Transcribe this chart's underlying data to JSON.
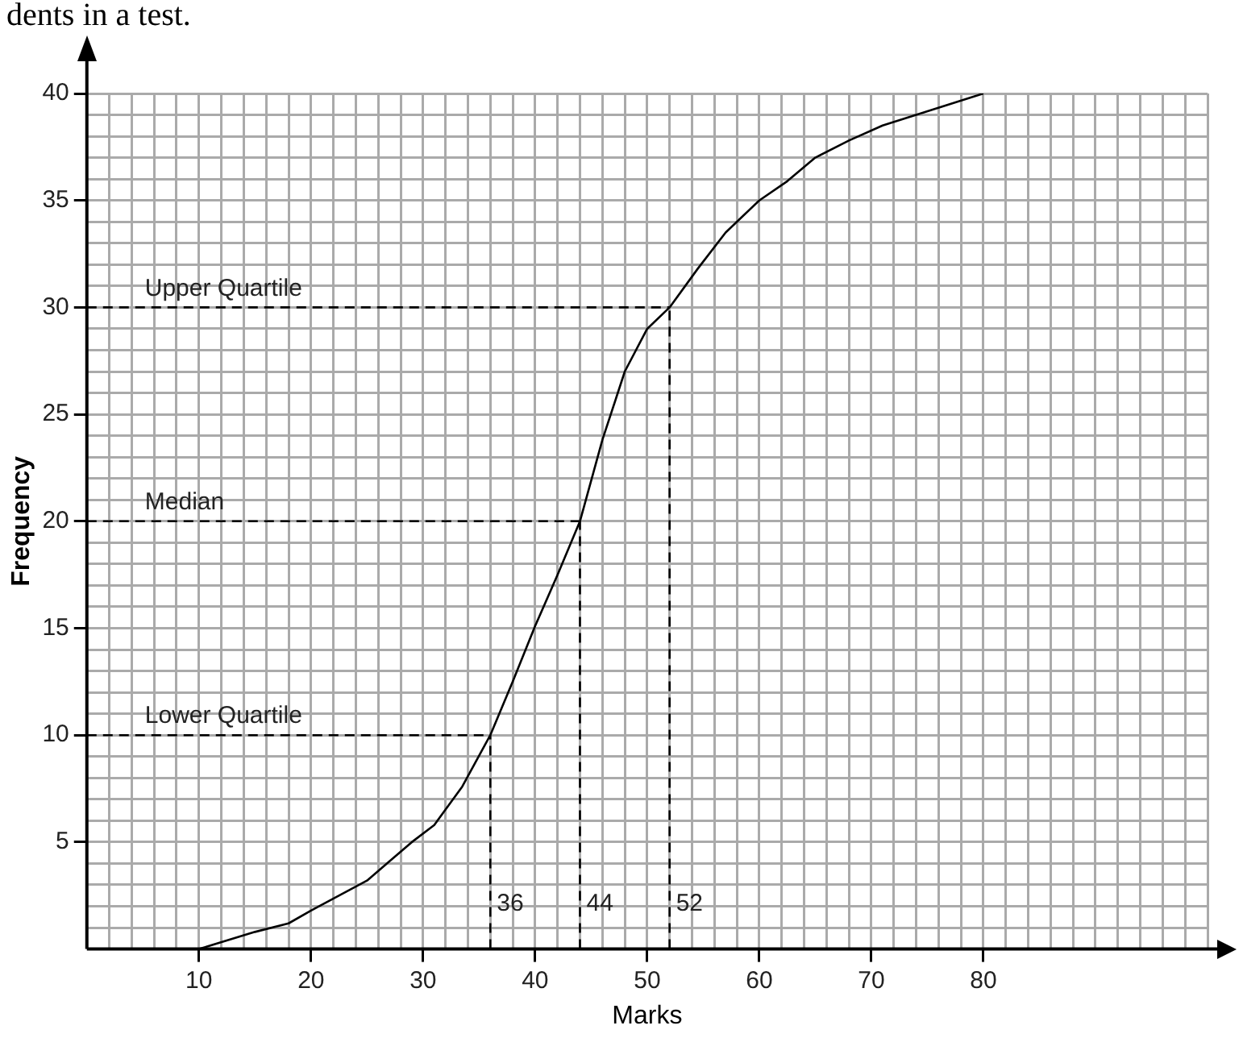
{
  "chart_data": {
    "type": "line",
    "xlabel": "Marks",
    "ylabel": "Frequency",
    "annotations": [
      "dents in a test."
    ],
    "series": [
      {
        "color": "#000000",
        "x": [
          10,
          15,
          18,
          20,
          25,
          27,
          29,
          31,
          33.5,
          36,
          38,
          40,
          42,
          44,
          46,
          48,
          50,
          52,
          54.5,
          57,
          60,
          62.5,
          65,
          68,
          71,
          74,
          77,
          80
        ],
        "values": [
          0,
          0.8,
          1.2,
          1.8,
          3.2,
          4.1,
          5,
          5.8,
          7.6,
          10,
          12.5,
          15.1,
          17.5,
          20,
          23.8,
          27,
          29,
          30,
          31.8,
          33.5,
          35,
          35.9,
          37,
          37.8,
          38.5,
          39,
          39.5,
          40
        ]
      }
    ],
    "xlim": [
      0,
      100
    ],
    "ylim": [
      0,
      40
    ],
    "xticks": [
      {
        "value": 2,
        "label": null
      },
      {
        "value": 4,
        "label": null
      },
      {
        "value": 6,
        "label": null
      },
      {
        "value": 8,
        "label": null
      },
      10,
      {
        "value": 12,
        "label": null
      },
      {
        "value": 14,
        "label": null
      },
      {
        "value": 16,
        "label": null
      },
      {
        "value": 18,
        "label": null
      },
      20,
      {
        "value": 22,
        "label": null
      },
      {
        "value": 24,
        "label": null
      },
      {
        "value": 26,
        "label": null
      },
      {
        "value": 28,
        "label": null
      },
      30,
      {
        "value": 32,
        "label": null
      },
      {
        "value": 34,
        "label": null
      },
      {
        "value": 36,
        "label": null
      },
      {
        "value": 38,
        "label": null
      },
      40,
      {
        "value": 42,
        "label": null
      },
      {
        "value": 44,
        "label": null
      },
      {
        "value": 46,
        "label": null
      },
      {
        "value": 48,
        "label": null
      },
      50,
      {
        "value": 52,
        "label": null
      },
      {
        "value": 54,
        "label": null
      },
      {
        "value": 56,
        "label": null
      },
      {
        "value": 58,
        "label": null
      },
      60,
      {
        "value": 62,
        "label": null
      },
      {
        "value": 64,
        "label": null
      },
      {
        "value": 66,
        "label": null
      },
      {
        "value": 68,
        "label": null
      },
      70,
      {
        "value": 72,
        "label": null
      },
      {
        "value": 74,
        "label": null
      },
      {
        "value": 76,
        "label": null
      },
      {
        "value": 78,
        "label": null
      },
      80,
      {
        "value": 82,
        "label": null
      },
      {
        "value": 84,
        "label": null
      },
      {
        "value": 86,
        "label": null
      },
      {
        "value": 88,
        "label": null
      },
      {
        "value": 90,
        "label": null
      },
      {
        "value": 92,
        "label": null
      },
      {
        "value": 94,
        "label": null
      },
      {
        "value": 96,
        "label": null
      },
      {
        "value": 98,
        "label": null
      },
      {
        "value": 100,
        "label": null
      }
    ],
    "yticks": [
      {
        "value": 1,
        "label": null
      },
      {
        "value": 2,
        "label": null
      },
      {
        "value": 3,
        "label": null
      },
      {
        "value": 4,
        "label": null
      },
      5,
      {
        "value": 6,
        "label": null
      },
      {
        "value": 7,
        "label": null
      },
      {
        "value": 8,
        "label": null
      },
      {
        "value": 9,
        "label": null
      },
      10,
      {
        "value": 11,
        "label": null
      },
      {
        "value": 12,
        "label": null
      },
      {
        "value": 13,
        "label": null
      },
      {
        "value": 14,
        "label": null
      },
      15,
      {
        "value": 16,
        "label": null
      },
      {
        "value": 17,
        "label": null
      },
      {
        "value": 18,
        "label": null
      },
      {
        "value": 19,
        "label": null
      },
      20,
      {
        "value": 21,
        "label": null
      },
      {
        "value": 22,
        "label": null
      },
      {
        "value": 23,
        "label": null
      },
      {
        "value": 24,
        "label": null
      },
      25,
      {
        "value": 26,
        "label": null
      },
      {
        "value": 27,
        "label": null
      },
      {
        "value": 28,
        "label": null
      },
      {
        "value": 29,
        "label": null
      },
      30,
      {
        "value": 31,
        "label": null
      },
      {
        "value": 32,
        "label": null
      },
      {
        "value": 33,
        "label": null
      },
      {
        "value": 34,
        "label": null
      },
      35,
      {
        "value": 36,
        "label": null
      },
      {
        "value": 37,
        "label": null
      },
      {
        "value": 38,
        "label": null
      },
      {
        "value": 39,
        "label": null
      },
      40
    ],
    "grid": true,
    "ref_lines": [
      {
        "axis": "y",
        "value": 10,
        "label": "Lower Quartile",
        "line_style": "dashed"
      },
      {
        "axis": "y",
        "value": 20,
        "label": "Median",
        "line_style": "dashed"
      },
      {
        "axis": "y",
        "value": 30,
        "label": "Upper Quartile",
        "line_style": "dashed"
      },
      {
        "axis": "x",
        "value": 36,
        "label": "36",
        "line_style": "dashed"
      },
      {
        "axis": "x",
        "value": 44,
        "label": "44",
        "line_style": "dashed"
      },
      {
        "axis": "x",
        "value": 52,
        "label": "52",
        "line_style": "dashed"
      }
    ]
  }
}
